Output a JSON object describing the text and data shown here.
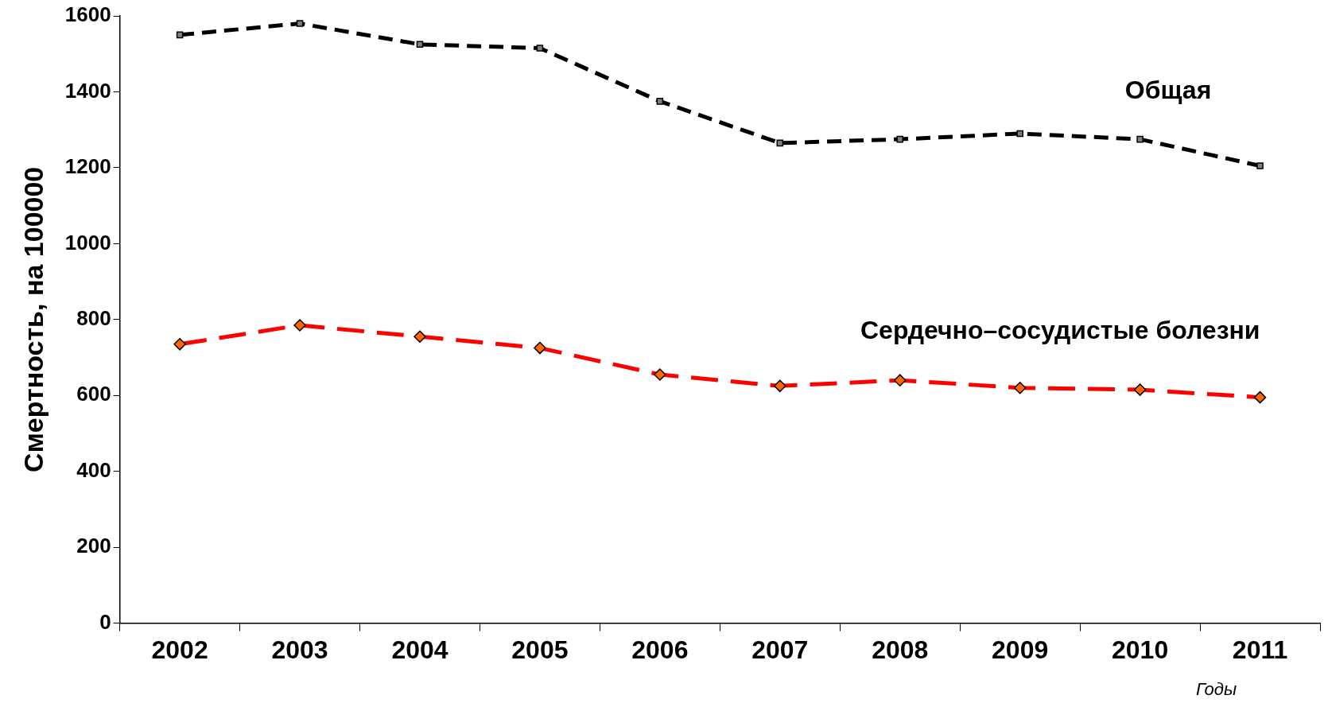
{
  "chart_data": {
    "type": "line",
    "ylabel": "Смертность, на 100000",
    "xlabel": "Годы",
    "categories": [
      "2002",
      "2003",
      "2004",
      "2005",
      "2006",
      "2007",
      "2008",
      "2009",
      "2010",
      "2011"
    ],
    "ylim": [
      0,
      1600
    ],
    "yticks": [
      0,
      200,
      400,
      600,
      800,
      1000,
      1200,
      1400,
      1600
    ],
    "grid": false,
    "legend": false,
    "line_style": "dashed",
    "series": [
      {
        "name": "Общая",
        "color": "#000000",
        "marker": "square",
        "values": [
          1550,
          1580,
          1525,
          1515,
          1375,
          1265,
          1275,
          1290,
          1275,
          1205
        ]
      },
      {
        "name": "Сердечно–сосудистые болезни",
        "color": "#ff0000",
        "marker": "diamond",
        "values": [
          735,
          785,
          755,
          725,
          655,
          625,
          640,
          620,
          615,
          595
        ]
      }
    ]
  }
}
